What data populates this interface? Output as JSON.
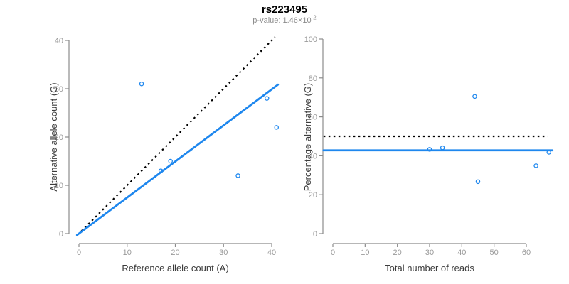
{
  "header": {
    "title": "rs223495",
    "p_value_label": "p-value: 1.46×10",
    "p_value_exponent": "-2"
  },
  "colors": {
    "accent_blue": "#1e87ee",
    "axis_line_gray": "#8c8c8c",
    "tick_label_gray": "#9a9a9a",
    "axis_title_color": "#3c3c3c",
    "reference_line_black": "#000000",
    "point_fill": "none"
  },
  "chart_data": [
    {
      "id": "left",
      "type": "scatter",
      "title": "",
      "xlabel": "Reference allele count (A)",
      "ylabel": "Alternative allele count (G)",
      "xlim": [
        0,
        41
      ],
      "ylim": [
        0,
        41
      ],
      "xticks": [
        0,
        10,
        20,
        30,
        40
      ],
      "yticks": [
        0,
        10,
        20,
        30,
        40
      ],
      "grid": false,
      "points": [
        {
          "x": 13,
          "y": 31
        },
        {
          "x": 17,
          "y": 13
        },
        {
          "x": 19,
          "y": 15
        },
        {
          "x": 33,
          "y": 12
        },
        {
          "x": 39,
          "y": 28
        },
        {
          "x": 41,
          "y": 22
        }
      ],
      "fit_line": {
        "kind": "slope",
        "slope": 0.747,
        "intercept": 0,
        "style": "solid",
        "color_key": "accent_blue"
      },
      "reference_line": {
        "kind": "slope",
        "slope": 1,
        "intercept": 0,
        "style": "dotted",
        "color_key": "reference_line_black"
      }
    },
    {
      "id": "right",
      "type": "scatter",
      "title": "",
      "xlabel": "Total number of reads",
      "ylabel": "Percentage alternative (G)",
      "xlim": [
        0,
        67
      ],
      "ylim": [
        0,
        100
      ],
      "xticks": [
        0,
        10,
        20,
        30,
        40,
        50,
        60
      ],
      "yticks": [
        0,
        20,
        40,
        60,
        80,
        100
      ],
      "grid": false,
      "points": [
        {
          "x": 30,
          "y": 43.3
        },
        {
          "x": 34,
          "y": 44.1
        },
        {
          "x": 44,
          "y": 70.5
        },
        {
          "x": 45,
          "y": 26.7
        },
        {
          "x": 63,
          "y": 34.9
        },
        {
          "x": 67,
          "y": 41.8
        }
      ],
      "fit_line": {
        "kind": "horizontal",
        "y": 42.8,
        "style": "solid",
        "color_key": "accent_blue"
      },
      "reference_line": {
        "kind": "horizontal",
        "y": 50,
        "style": "dotted",
        "color_key": "reference_line_black"
      }
    }
  ]
}
